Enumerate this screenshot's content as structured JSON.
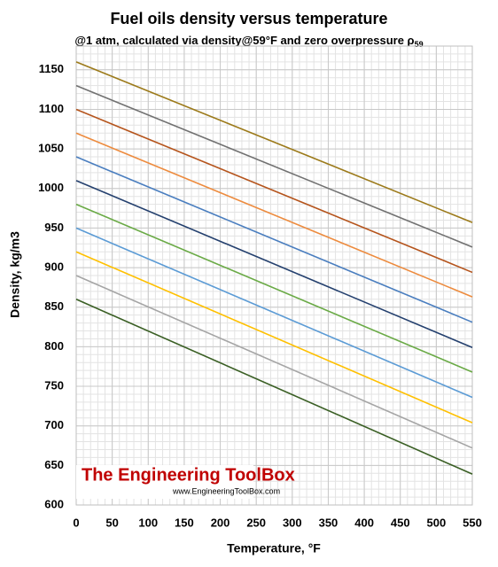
{
  "chart_data": {
    "type": "line",
    "title": "Fuel oils density versus temperature",
    "subtitle": "@1 atm, calculated via density@59°F and zero overpressure ρ",
    "subtitle_subscript": "59",
    "x_label": "Temperature, °F",
    "y_label": "Density, kg/m3",
    "watermark": "The Engineering ToolBox",
    "watermark_url": "www.EngineeringToolBox.com",
    "x": [
      0,
      550
    ],
    "series": [
      {
        "color": "#9c7a1a",
        "values": [
          1160,
          957
        ]
      },
      {
        "color": "#717171",
        "values": [
          1130,
          926
        ]
      },
      {
        "color": "#b5541c",
        "values": [
          1100,
          894
        ]
      },
      {
        "color": "#ed8b3e",
        "values": [
          1070,
          863
        ]
      },
      {
        "color": "#4a7ebf",
        "values": [
          1040,
          831
        ]
      },
      {
        "color": "#24406e",
        "values": [
          1010,
          799
        ]
      },
      {
        "color": "#6aaa46",
        "values": [
          980,
          768
        ]
      },
      {
        "color": "#5b9bd5",
        "values": [
          950,
          736
        ]
      },
      {
        "color": "#ffc000",
        "values": [
          920,
          704
        ]
      },
      {
        "color": "#a5a5a5",
        "values": [
          890,
          672
        ]
      },
      {
        "color": "#3a5f24",
        "values": [
          860,
          639
        ]
      }
    ],
    "xlim": [
      0,
      550
    ],
    "xticks": [
      0,
      50,
      100,
      150,
      200,
      250,
      300,
      350,
      400,
      450,
      500,
      550
    ],
    "ylim": [
      600,
      1180
    ],
    "yticks": [
      600,
      650,
      700,
      750,
      800,
      850,
      900,
      950,
      1000,
      1050,
      1100,
      1150
    ],
    "grid": true
  }
}
